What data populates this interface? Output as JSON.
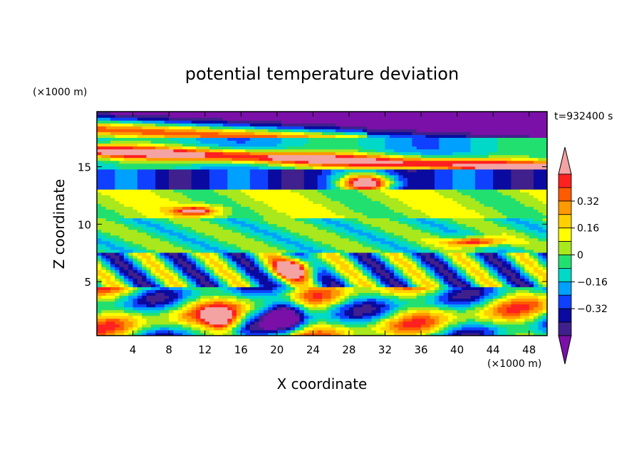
{
  "chart_data": {
    "type": "heatmap",
    "title": "potential temperature deviation",
    "xlabel": "X coordinate",
    "ylabel": "Z coordinate",
    "x_unit": "(×1000 m)",
    "y_unit": "(×1000 m)",
    "time_label": "t=932400 s",
    "xlim": [
      0,
      50
    ],
    "ylim": [
      0.3,
      19.8
    ],
    "x_ticks": [
      4,
      8,
      12,
      16,
      20,
      24,
      28,
      32,
      36,
      40,
      44,
      48
    ],
    "y_ticks": [
      5,
      10,
      15
    ],
    "colorbar": {
      "levels": [
        -0.48,
        -0.4,
        -0.32,
        -0.24,
        -0.16,
        -0.08,
        0,
        0.08,
        0.16,
        0.24,
        0.32,
        0.4,
        0.48
      ],
      "labels": [
        "0.32",
        "0.16",
        "0",
        "−0.16",
        "−0.32"
      ],
      "label_values": [
        0.32,
        0.16,
        0,
        -0.16,
        -0.32
      ],
      "colors": [
        "#f4a3a3",
        "#ff2020",
        "#ff5a00",
        "#ff9a00",
        "#ffd000",
        "#ffff00",
        "#a8e81c",
        "#22e070",
        "#00d8c8",
        "#00a0ff",
        "#1040ff",
        "#0a0aa0",
        "#40208c",
        "#7a10a8"
      ],
      "extend": "both"
    }
  }
}
